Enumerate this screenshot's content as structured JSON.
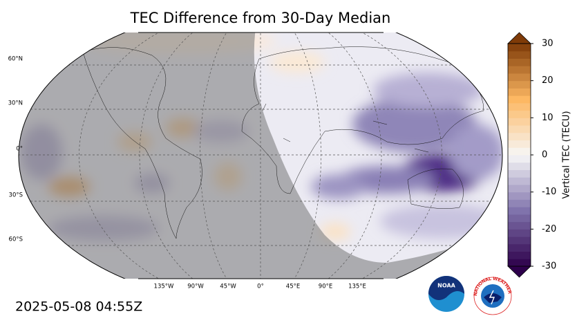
{
  "title": "TEC Difference from 30-Day Median",
  "latitude_labels": [
    "60°N",
    "30°N",
    "0°",
    "30°S",
    "60°S"
  ],
  "longitude_labels": [
    "135°W",
    "90°W",
    "45°W",
    "0°",
    "45°E",
    "90°E",
    "135°E"
  ],
  "colorbar": {
    "label": "Vertical TEC (TECU)",
    "range": [
      -30,
      30
    ],
    "ticks": [
      -30,
      -20,
      -10,
      0,
      10,
      20,
      30
    ]
  },
  "timestamp": "2025-05-08 04:55Z",
  "logos": {
    "noaa": "NOAA",
    "nws": "NATIONAL WEATHER SERVICE"
  }
}
